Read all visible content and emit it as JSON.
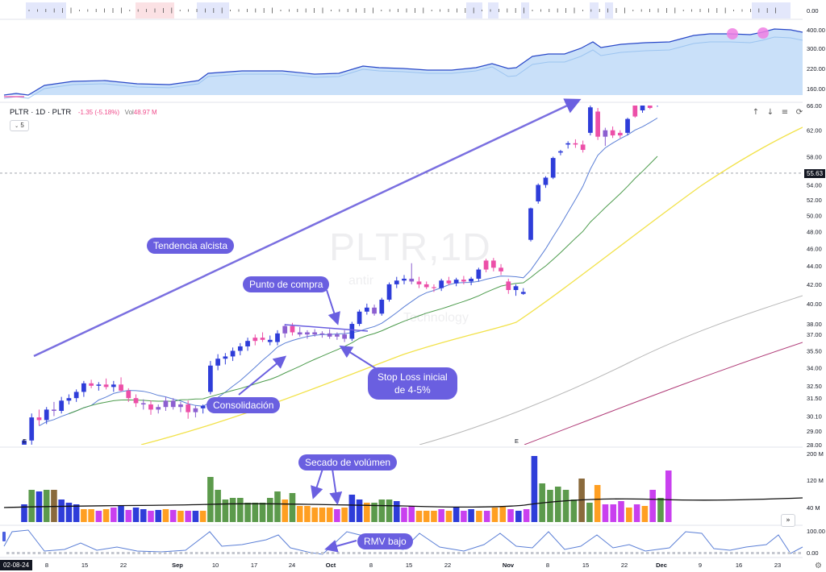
{
  "legend": {
    "symbol": "PLTR",
    "interval": "1D",
    "exchange": "PLTR",
    "change": "-1.35 (-5.18%)",
    "vol_label": "Vol",
    "vol_value": "48.97 M"
  },
  "interval_chip": "5",
  "watermark": {
    "title": "PLTR,1D",
    "line1": "antir",
    "line2": "Technology"
  },
  "toolbar": {
    "up_icon": "arrow-up-icon",
    "down_icon": "arrow-down-icon",
    "list_icon": "list-icon",
    "cycle_icon": "cycle-icon"
  },
  "last_price_tag": "55.63",
  "date_tag": "02-08-24",
  "nav_button_icon": "double-chevron-right-icon",
  "settings_icon": "gear-icon",
  "annotations": {
    "trend": "Tendencia alcista",
    "buy_point": "Punto de compra",
    "consolidation": "Consolidación",
    "stop_loss_line1": "Stop Loss inicial",
    "stop_loss_line2": "de 4-5%",
    "volume_dryup": "Secado de volúmen",
    "rmv_low": "RMV bajo"
  },
  "chart_data": [
    {
      "panel": "price",
      "type": "candlestick",
      "symbol": "PLTR",
      "interval": "1D",
      "scale": "log",
      "y_ticks": [
        "66.00",
        "62.00",
        "58.00",
        "55.63",
        "54.00",
        "52.00",
        "50.00",
        "48.00",
        "46.00",
        "44.00",
        "42.00",
        "40.00",
        "38.00",
        "37.00",
        "35.50",
        "34.00",
        "32.50",
        "31.50",
        "30.10",
        "29.00",
        "28.00"
      ],
      "ylim": [
        28,
        66
      ],
      "x_ticks": [
        "02-08-24",
        "8",
        "15",
        "22",
        "Sep",
        "10",
        "17",
        "24",
        "Oct",
        "8",
        "15",
        "22",
        "Nov",
        "8",
        "15",
        "22",
        "Dec",
        "9",
        "16",
        "23"
      ],
      "candles": [
        {
          "o": 27.0,
          "h": 28.4,
          "l": 26.8,
          "c": 28.3,
          "col": "blue"
        },
        {
          "o": 28.3,
          "h": 30.3,
          "l": 28.0,
          "c": 30.0,
          "col": "blue"
        },
        {
          "o": 30.0,
          "h": 30.6,
          "l": 29.4,
          "c": 29.8,
          "col": "pink"
        },
        {
          "o": 29.8,
          "h": 30.8,
          "l": 29.5,
          "c": 30.6,
          "col": "blue"
        },
        {
          "o": 30.6,
          "h": 31.2,
          "l": 30.1,
          "c": 30.5,
          "col": "purple"
        },
        {
          "o": 30.5,
          "h": 31.6,
          "l": 30.3,
          "c": 31.3,
          "col": "blue"
        },
        {
          "o": 31.3,
          "h": 31.8,
          "l": 31.0,
          "c": 31.5,
          "col": "blue"
        },
        {
          "o": 31.5,
          "h": 32.2,
          "l": 31.2,
          "c": 32.0,
          "col": "blue"
        },
        {
          "o": 32.0,
          "h": 32.9,
          "l": 31.6,
          "c": 32.7,
          "col": "blue"
        },
        {
          "o": 32.7,
          "h": 33.0,
          "l": 32.3,
          "c": 32.5,
          "col": "pink"
        },
        {
          "o": 32.5,
          "h": 32.8,
          "l": 32.1,
          "c": 32.6,
          "col": "blue"
        },
        {
          "o": 32.6,
          "h": 33.1,
          "l": 32.2,
          "c": 32.4,
          "col": "pink"
        },
        {
          "o": 32.4,
          "h": 32.9,
          "l": 32.0,
          "c": 32.6,
          "col": "blue"
        },
        {
          "o": 32.6,
          "h": 33.2,
          "l": 32.0,
          "c": 32.1,
          "col": "pink"
        },
        {
          "o": 32.1,
          "h": 32.3,
          "l": 31.2,
          "c": 31.5,
          "col": "pink"
        },
        {
          "o": 31.5,
          "h": 31.8,
          "l": 30.8,
          "c": 31.1,
          "col": "pink"
        },
        {
          "o": 31.1,
          "h": 31.4,
          "l": 30.6,
          "c": 31.0,
          "col": "purple"
        },
        {
          "o": 31.0,
          "h": 31.3,
          "l": 30.2,
          "c": 30.6,
          "col": "pink"
        },
        {
          "o": 30.6,
          "h": 31.0,
          "l": 30.3,
          "c": 30.8,
          "col": "purple"
        },
        {
          "o": 30.8,
          "h": 31.6,
          "l": 30.5,
          "c": 31.3,
          "col": "purple"
        },
        {
          "o": 31.3,
          "h": 31.5,
          "l": 30.6,
          "c": 30.8,
          "col": "purple"
        },
        {
          "o": 30.8,
          "h": 31.2,
          "l": 30.4,
          "c": 31.0,
          "col": "purple"
        },
        {
          "o": 31.0,
          "h": 31.3,
          "l": 29.9,
          "c": 30.4,
          "col": "pink"
        },
        {
          "o": 30.4,
          "h": 30.9,
          "l": 30.0,
          "c": 30.7,
          "col": "purple"
        },
        {
          "o": 30.7,
          "h": 31.0,
          "l": 30.3,
          "c": 30.9,
          "col": "blue"
        },
        {
          "o": 32.0,
          "h": 34.6,
          "l": 31.8,
          "c": 34.2,
          "col": "blue"
        },
        {
          "o": 34.2,
          "h": 35.2,
          "l": 33.8,
          "c": 34.8,
          "col": "blue"
        },
        {
          "o": 34.8,
          "h": 35.3,
          "l": 34.3,
          "c": 35.0,
          "col": "blue"
        },
        {
          "o": 35.0,
          "h": 35.8,
          "l": 34.6,
          "c": 35.5,
          "col": "blue"
        },
        {
          "o": 35.5,
          "h": 36.2,
          "l": 35.1,
          "c": 35.9,
          "col": "blue"
        },
        {
          "o": 35.9,
          "h": 36.7,
          "l": 35.5,
          "c": 36.4,
          "col": "blue"
        },
        {
          "o": 36.4,
          "h": 37.0,
          "l": 36.0,
          "c": 36.7,
          "col": "pink"
        },
        {
          "o": 36.7,
          "h": 37.2,
          "l": 36.3,
          "c": 36.5,
          "col": "pink"
        },
        {
          "o": 36.5,
          "h": 36.9,
          "l": 36.0,
          "c": 36.3,
          "col": "blue"
        },
        {
          "o": 36.3,
          "h": 37.4,
          "l": 36.0,
          "c": 37.1,
          "col": "blue"
        },
        {
          "o": 37.1,
          "h": 38.0,
          "l": 36.7,
          "c": 37.8,
          "col": "purple"
        },
        {
          "o": 37.8,
          "h": 38.1,
          "l": 36.9,
          "c": 37.2,
          "col": "pink"
        },
        {
          "o": 37.2,
          "h": 37.7,
          "l": 36.8,
          "c": 37.0,
          "col": "purple"
        },
        {
          "o": 37.0,
          "h": 37.4,
          "l": 36.6,
          "c": 37.2,
          "col": "purple"
        },
        {
          "o": 37.2,
          "h": 37.5,
          "l": 36.8,
          "c": 37.0,
          "col": "purple"
        },
        {
          "o": 37.0,
          "h": 37.3,
          "l": 36.7,
          "c": 37.1,
          "col": "purple"
        },
        {
          "o": 37.1,
          "h": 37.5,
          "l": 36.6,
          "c": 36.8,
          "col": "purple"
        },
        {
          "o": 36.8,
          "h": 37.2,
          "l": 36.5,
          "c": 37.0,
          "col": "purple"
        },
        {
          "o": 37.0,
          "h": 37.4,
          "l": 36.3,
          "c": 36.6,
          "col": "purple"
        },
        {
          "o": 36.6,
          "h": 38.2,
          "l": 36.4,
          "c": 38.0,
          "col": "blue"
        },
        {
          "o": 38.0,
          "h": 39.4,
          "l": 37.8,
          "c": 39.2,
          "col": "blue"
        },
        {
          "o": 39.2,
          "h": 40.0,
          "l": 38.9,
          "c": 39.6,
          "col": "blue"
        },
        {
          "o": 39.6,
          "h": 39.9,
          "l": 38.8,
          "c": 39.0,
          "col": "purple"
        },
        {
          "o": 39.0,
          "h": 40.6,
          "l": 38.8,
          "c": 40.4,
          "col": "blue"
        },
        {
          "o": 40.4,
          "h": 42.2,
          "l": 40.2,
          "c": 42.0,
          "col": "blue"
        },
        {
          "o": 42.0,
          "h": 42.8,
          "l": 41.6,
          "c": 42.4,
          "col": "blue"
        },
        {
          "o": 42.4,
          "h": 43.0,
          "l": 42.0,
          "c": 42.6,
          "col": "blue"
        },
        {
          "o": 42.6,
          "h": 44.3,
          "l": 42.0,
          "c": 42.3,
          "col": "purple"
        },
        {
          "o": 42.3,
          "h": 42.8,
          "l": 41.6,
          "c": 42.0,
          "col": "pink"
        },
        {
          "o": 42.0,
          "h": 42.3,
          "l": 41.5,
          "c": 41.7,
          "col": "pink"
        },
        {
          "o": 41.7,
          "h": 42.0,
          "l": 41.2,
          "c": 41.6,
          "col": "pink"
        },
        {
          "o": 41.6,
          "h": 42.6,
          "l": 41.3,
          "c": 42.4,
          "col": "blue"
        },
        {
          "o": 42.4,
          "h": 42.8,
          "l": 41.9,
          "c": 42.1,
          "col": "pink"
        },
        {
          "o": 42.1,
          "h": 42.7,
          "l": 41.8,
          "c": 42.5,
          "col": "blue"
        },
        {
          "o": 42.5,
          "h": 42.9,
          "l": 42.0,
          "c": 42.3,
          "col": "pink"
        },
        {
          "o": 42.3,
          "h": 42.8,
          "l": 41.9,
          "c": 42.6,
          "col": "blue"
        },
        {
          "o": 42.6,
          "h": 43.8,
          "l": 42.3,
          "c": 43.6,
          "col": "blue"
        },
        {
          "o": 43.6,
          "h": 44.8,
          "l": 43.3,
          "c": 44.6,
          "col": "pink"
        },
        {
          "o": 44.6,
          "h": 44.9,
          "l": 43.4,
          "c": 43.8,
          "col": "pink"
        },
        {
          "o": 43.8,
          "h": 44.2,
          "l": 43.0,
          "c": 43.4,
          "col": "pink"
        },
        {
          "o": 42.3,
          "h": 42.6,
          "l": 41.0,
          "c": 41.4,
          "col": "pink"
        },
        {
          "o": 41.4,
          "h": 42.0,
          "l": 40.8,
          "c": 41.8,
          "col": "blue"
        },
        {
          "o": 41.2,
          "h": 41.6,
          "l": 40.9,
          "c": 41.0,
          "col": "blue"
        },
        {
          "o": 47.0,
          "h": 51.0,
          "l": 46.8,
          "c": 50.9,
          "col": "blue"
        },
        {
          "o": 51.8,
          "h": 54.2,
          "l": 51.5,
          "c": 54.0,
          "col": "blue"
        },
        {
          "o": 54.0,
          "h": 55.2,
          "l": 53.6,
          "c": 55.0,
          "col": "blue"
        },
        {
          "o": 55.0,
          "h": 58.0,
          "l": 54.8,
          "c": 57.8,
          "col": "blue"
        },
        {
          "o": 58.6,
          "h": 59.0,
          "l": 58.2,
          "c": 58.8,
          "col": "blue"
        },
        {
          "o": 59.8,
          "h": 60.3,
          "l": 59.2,
          "c": 60.0,
          "col": "blue"
        },
        {
          "o": 60.0,
          "h": 60.6,
          "l": 59.3,
          "c": 59.8,
          "col": "pink"
        },
        {
          "o": 59.8,
          "h": 60.4,
          "l": 58.6,
          "c": 59.0,
          "col": "pink"
        },
        {
          "o": 61.6,
          "h": 66.0,
          "l": 61.2,
          "c": 65.7,
          "col": "blue"
        },
        {
          "o": 65.0,
          "h": 65.6,
          "l": 60.5,
          "c": 61.0,
          "col": "pink"
        },
        {
          "o": 61.0,
          "h": 62.4,
          "l": 59.6,
          "c": 62.0,
          "col": "purple"
        },
        {
          "o": 62.0,
          "h": 62.6,
          "l": 60.8,
          "c": 61.2,
          "col": "pink"
        },
        {
          "o": 61.2,
          "h": 62.0,
          "l": 60.8,
          "c": 61.6,
          "col": "pink"
        },
        {
          "o": 61.6,
          "h": 64.0,
          "l": 61.2,
          "c": 63.8,
          "col": "blue"
        },
        {
          "o": 64.2,
          "h": 66.5,
          "l": 64.0,
          "c": 66.3,
          "col": "pink"
        },
        {
          "o": 66.3,
          "h": 66.6,
          "l": 64.8,
          "c": 65.2,
          "col": "blue"
        },
        {
          "o": 65.6,
          "h": 66.6,
          "l": 65.4,
          "c": 66.4,
          "col": "pink"
        },
        {
          "o": 66.1,
          "h": 66.5,
          "l": 65.8,
          "c": 66.3,
          "col": "blue"
        }
      ]
    },
    {
      "panel": "relative-strength",
      "type": "area",
      "y_ticks": [
        "400.00",
        "300.00",
        "220.00",
        "160.00"
      ]
    },
    {
      "panel": "volume",
      "type": "bar",
      "y_ticks": [
        "200 M",
        "120 M",
        "40 M"
      ]
    },
    {
      "panel": "rmv",
      "type": "line",
      "y_ticks": [
        "100.00",
        "0.00"
      ]
    },
    {
      "panel": "signal-strip",
      "type": "heatmap",
      "y_ticks": [
        "0.00"
      ]
    }
  ]
}
